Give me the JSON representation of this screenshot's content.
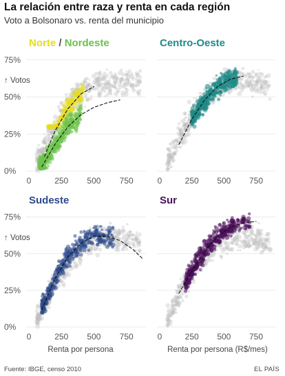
{
  "header": {
    "title": "La relación entre raza y renta en cada región",
    "subtitle": "Voto a Bolsonaro vs. renta del municipio"
  },
  "footer": {
    "source": "Fuente: IBGE, censo 2010",
    "brand": "EL PAÍS"
  },
  "colors": {
    "norte": "#e6dc1e",
    "nordeste": "#6cc24a",
    "centro_oeste": "#1f8a86",
    "sudeste": "#2e4a8c",
    "sur": "#4b0d5a",
    "background_points": "#bdbdbd"
  },
  "chart_data": [
    {
      "type": "scatter",
      "panel": "Norte / Nordeste",
      "title_parts": [
        "Norte",
        "/",
        "Nordeste"
      ],
      "ylabel": "Votos",
      "xlabel": "",
      "x_ticks": [
        "0",
        "250",
        "500",
        "750"
      ],
      "y_ticks": [
        "0%",
        "25%",
        "50%",
        "75%"
      ],
      "xlim": [
        0,
        900
      ],
      "ylim": [
        0,
        80
      ],
      "trend_lines": [
        {
          "name": "Norte",
          "points": [
            [
              120,
              10
            ],
            [
              200,
              27
            ],
            [
              300,
              42
            ],
            [
              400,
              52
            ],
            [
              500,
              57
            ]
          ]
        },
        {
          "name": "Nordeste",
          "points": [
            [
              100,
              3
            ],
            [
              200,
              18
            ],
            [
              300,
              30
            ],
            [
              400,
              38
            ],
            [
              500,
              43
            ],
            [
              600,
              46
            ],
            [
              700,
              48
            ]
          ]
        }
      ],
      "series": [
        {
          "name": "Norte",
          "cluster": {
            "x_range": [
              150,
              420
            ],
            "y_range": [
              30,
              65
            ]
          }
        },
        {
          "name": "Nordeste",
          "cluster": {
            "x_range": [
              80,
              400
            ],
            "y_range": [
              2,
              55
            ]
          }
        }
      ]
    },
    {
      "type": "scatter",
      "panel": "Centro-Oeste",
      "title": "Centro-Oeste",
      "xlabel": "",
      "x_ticks": [
        "0",
        "250",
        "500",
        "750"
      ],
      "xlim": [
        0,
        900
      ],
      "ylim": [
        0,
        80
      ],
      "trend_lines": [
        {
          "name": "Centro-Oeste",
          "points": [
            [
              150,
              18
            ],
            [
              250,
              35
            ],
            [
              350,
              48
            ],
            [
              450,
              57
            ],
            [
              550,
              62
            ],
            [
              650,
              64
            ]
          ]
        }
      ],
      "series": [
        {
          "name": "Centro-Oeste",
          "cluster": {
            "x_range": [
              250,
              600
            ],
            "y_range": [
              30,
              72
            ]
          }
        }
      ]
    },
    {
      "type": "scatter",
      "panel": "Sudeste",
      "title": "Sudeste",
      "ylabel": "Votos",
      "xlabel": "Renta por persona",
      "x_ticks": [
        "0",
        "250",
        "500",
        "750"
      ],
      "y_ticks": [
        "0%",
        "25%",
        "50%",
        "75%"
      ],
      "xlim": [
        0,
        900
      ],
      "ylim": [
        0,
        80
      ],
      "trend_lines": [
        {
          "name": "Sudeste",
          "points": [
            [
              100,
              12
            ],
            [
              200,
              33
            ],
            [
              300,
              48
            ],
            [
              400,
              57
            ],
            [
              500,
              62
            ],
            [
              600,
              62
            ],
            [
              700,
              59
            ],
            [
              800,
              53
            ],
            [
              870,
              47
            ]
          ]
        }
      ],
      "series": [
        {
          "name": "Sudeste",
          "cluster": {
            "x_range": [
              100,
              650
            ],
            "y_range": [
              10,
              70
            ]
          }
        }
      ]
    },
    {
      "type": "scatter",
      "panel": "Sur",
      "title": "Sur",
      "xlabel": "Renta por persona (R$/mes)",
      "x_ticks": [
        "0",
        "250",
        "500",
        "750"
      ],
      "xlim": [
        0,
        900
      ],
      "ylim": [
        0,
        80
      ],
      "trend_lines": [
        {
          "name": "Sur",
          "points": [
            [
              150,
              23
            ],
            [
              250,
              38
            ],
            [
              350,
              52
            ],
            [
              450,
              62
            ],
            [
              550,
              68
            ],
            [
              650,
              71
            ],
            [
              750,
              72
            ]
          ]
        }
      ],
      "series": [
        {
          "name": "Sur",
          "cluster": {
            "x_range": [
              200,
              700
            ],
            "y_range": [
              20,
              80
            ]
          }
        }
      ]
    }
  ]
}
